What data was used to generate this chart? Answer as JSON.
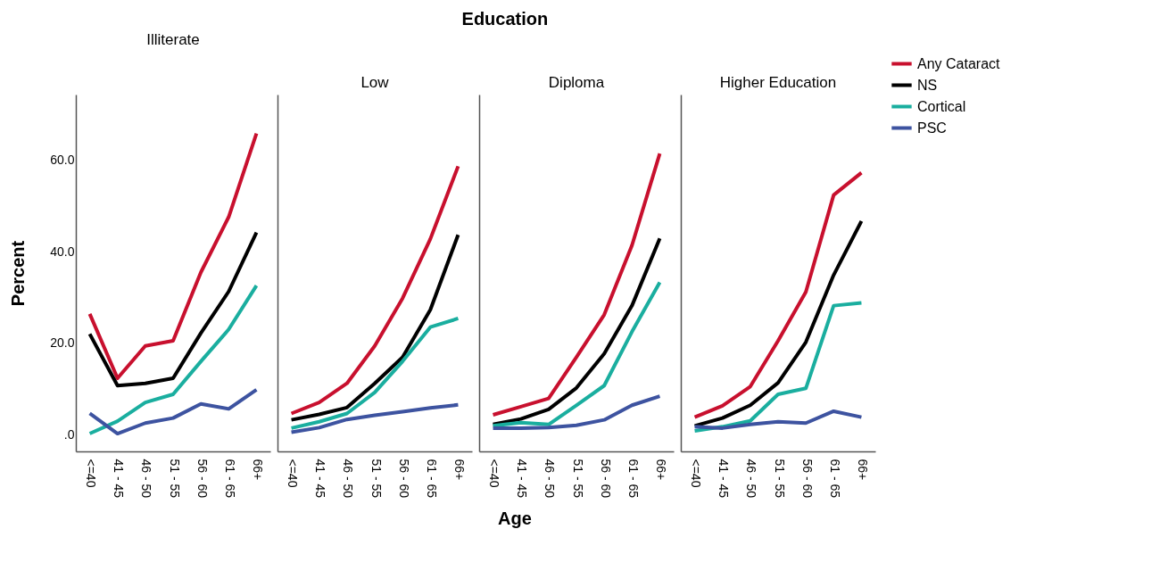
{
  "chart_data": [
    {
      "type": "line",
      "title": "Illiterate",
      "ylabel": "Percent",
      "annotations": [
        "Education",
        "Age"
      ],
      "legend": "top right",
      "grid": false,
      "marker": "none",
      "line_style": "solid",
      "categories": [
        "<=40",
        "41 - 45",
        "46 - 50",
        "51 - 55",
        "56 - 60",
        "61 - 65",
        "66+"
      ],
      "ylim": [
        -3.7,
        74.4
      ],
      "yticks": [
        {
          "value": 0,
          "label": ".0"
        },
        {
          "value": 20,
          "label": "20.0"
        },
        {
          "value": 40,
          "label": "40.0"
        },
        {
          "value": 60,
          "label": "60.0"
        }
      ],
      "series": [
        {
          "name": "Any Cataract",
          "color": "#c8102e",
          "values": [
            26.4,
            12.3,
            19.4,
            20.5,
            35.5,
            47.6,
            65.9
          ]
        },
        {
          "name": "NS",
          "color": "#000000",
          "values": [
            22.0,
            10.7,
            11.2,
            12.3,
            22.2,
            31.3,
            44.2
          ]
        },
        {
          "name": "Cortical",
          "color": "#1aae9f",
          "values": [
            0.2,
            2.9,
            7.0,
            8.8,
            16.0,
            23.0,
            32.6
          ]
        },
        {
          "name": "PSC",
          "color": "#3d53a0",
          "values": [
            4.6,
            0.2,
            2.5,
            3.6,
            6.7,
            5.6,
            9.8
          ]
        }
      ]
    },
    {
      "type": "line",
      "title": "Low",
      "tick_labels": "x",
      "grid": false,
      "marker": "none",
      "line_style": "solid",
      "categories": [
        "<=40",
        "41 - 45",
        "46 - 50",
        "51 - 55",
        "56 - 60",
        "61 - 65",
        "66+"
      ],
      "ylim": [
        -3.7,
        74.4
      ],
      "series": [
        {
          "color": "#c8102e",
          "values": [
            4.6,
            7.0,
            11.2,
            19.4,
            29.8,
            42.8,
            58.7
          ]
        },
        {
          "color": "#000000",
          "values": [
            3.2,
            4.4,
            5.9,
            11.2,
            16.9,
            27.3,
            43.7
          ]
        },
        {
          "color": "#1aae9f",
          "values": [
            1.4,
            2.8,
            4.6,
            9.2,
            16.0,
            23.5,
            25.4
          ]
        },
        {
          "color": "#3d53a0",
          "values": [
            0.5,
            1.5,
            3.3,
            4.2,
            5.0,
            5.8,
            6.5
          ]
        }
      ]
    },
    {
      "type": "line",
      "title": "Diploma",
      "tick_labels": "x",
      "grid": false,
      "marker": "none",
      "line_style": "solid",
      "categories": [
        "<=40",
        "41 - 45",
        "46 - 50",
        "51 - 55",
        "56 - 60",
        "61 - 65",
        "66+"
      ],
      "ylim": [
        -3.7,
        74.4
      ],
      "series": [
        {
          "color": "#c8102e",
          "values": [
            4.3,
            6.1,
            7.9,
            16.9,
            26.2,
            41.4,
            61.5
          ]
        },
        {
          "color": "#000000",
          "values": [
            2.2,
            3.4,
            5.5,
            10.2,
            17.7,
            28.2,
            42.9
          ]
        },
        {
          "color": "#1aae9f",
          "values": [
            1.9,
            2.6,
            2.2,
            6.4,
            10.7,
            22.5,
            33.3
          ]
        },
        {
          "color": "#3d53a0",
          "values": [
            1.4,
            1.4,
            1.5,
            2.0,
            3.2,
            6.4,
            8.4
          ]
        }
      ]
    },
    {
      "type": "line",
      "title": "Higher Education",
      "tick_labels": "x",
      "grid": false,
      "marker": "none",
      "line_style": "solid",
      "categories": [
        "<=40",
        "41 - 45",
        "46 - 50",
        "51 - 55",
        "56 - 60",
        "61 - 65",
        "66+"
      ],
      "ylim": [
        -3.7,
        74.4
      ],
      "series": [
        {
          "color": "#c8102e",
          "values": [
            3.8,
            6.3,
            10.5,
            20.5,
            31.2,
            52.4,
            57.3
          ]
        },
        {
          "color": "#000000",
          "values": [
            1.9,
            3.6,
            6.4,
            11.3,
            20.2,
            34.9,
            46.7
          ]
        },
        {
          "color": "#1aae9f",
          "values": [
            0.8,
            1.7,
            3.0,
            8.8,
            10.1,
            28.2,
            28.8
          ]
        },
        {
          "color": "#3d53a0",
          "values": [
            1.7,
            1.4,
            2.2,
            2.8,
            2.5,
            5.1,
            3.8
          ]
        }
      ]
    }
  ]
}
